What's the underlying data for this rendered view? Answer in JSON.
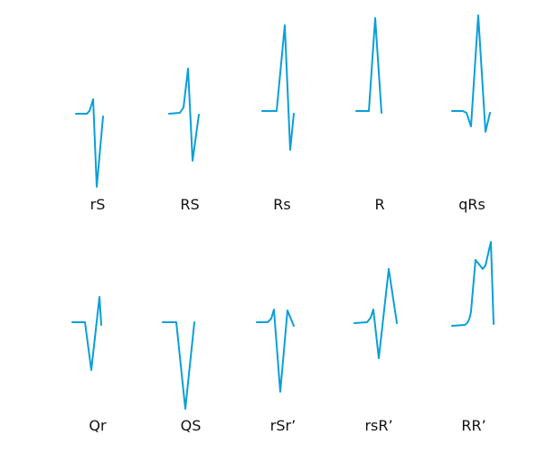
{
  "colors": {
    "waveform": "#0b9fd8",
    "label": "#111111",
    "background": "#ffffff"
  },
  "complexes": [
    {
      "id": "rS",
      "label": "rS"
    },
    {
      "id": "RS",
      "label": "RS"
    },
    {
      "id": "Rs",
      "label": "Rs"
    },
    {
      "id": "R",
      "label": "R"
    },
    {
      "id": "qRs",
      "label": "qRs"
    },
    {
      "id": "Qr",
      "label": "Qr"
    },
    {
      "id": "QS",
      "label": "QS"
    },
    {
      "id": "rSr",
      "label": "rSr’"
    },
    {
      "id": "rsR",
      "label": "rsR’"
    },
    {
      "id": "RR",
      "label": "RR’"
    }
  ]
}
